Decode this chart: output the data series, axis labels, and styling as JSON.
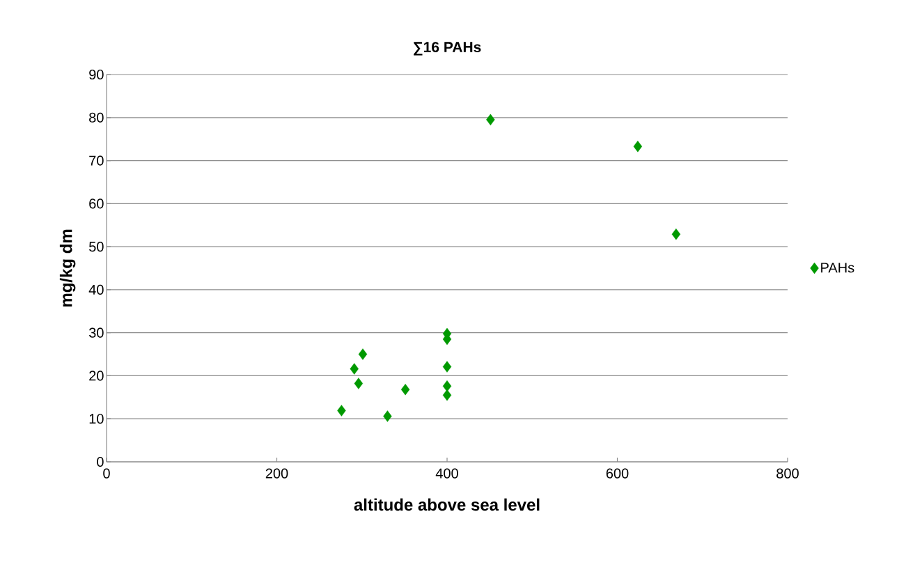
{
  "chart_data": {
    "type": "scatter",
    "title": "∑16 PAHs",
    "xlabel": "altitude above sea level",
    "ylabel": "mg/kg dm",
    "x": [
      276,
      291,
      296,
      301,
      330,
      351,
      400,
      400,
      400,
      400,
      400,
      451,
      624,
      669
    ],
    "series": [
      {
        "name": "PAHs",
        "color": "#009900",
        "values": [
          11.9,
          21.6,
          18.2,
          25,
          10.6,
          16.8,
          29.8,
          28.5,
          22.1,
          17.6,
          15.5,
          79.5,
          73.3,
          52.9
        ]
      }
    ],
    "xlim": [
      0,
      800
    ],
    "xticks": [
      0,
      200,
      400,
      600,
      800
    ],
    "ylim": [
      0,
      90
    ],
    "yticks": [
      0,
      10,
      20,
      30,
      40,
      50,
      60,
      70,
      80,
      90
    ],
    "grid": "y",
    "legend": "right",
    "marker": "diamond"
  }
}
